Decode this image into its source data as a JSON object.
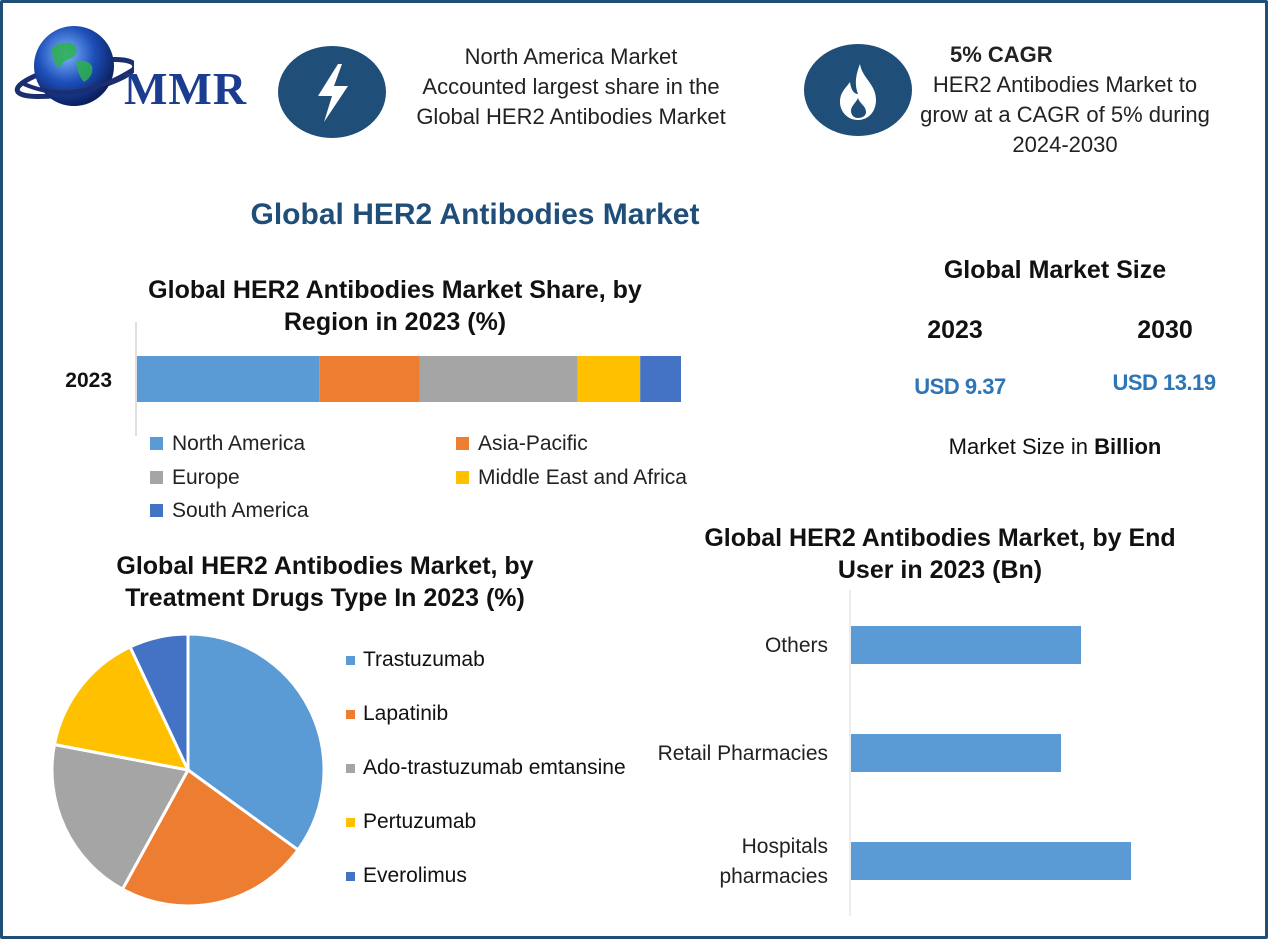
{
  "header": {
    "logo_text": "MMR",
    "region_info": [
      "North America Market",
      "Accounted largest share in the",
      "Global HER2 Antibodies Market"
    ],
    "cagr_title": "5% CAGR",
    "cagr_info": [
      "HER2 Antibodies Market to",
      "grow at a CAGR of 5% during",
      "2024-2030"
    ]
  },
  "main_title": "Global HER2 Antibodies Market",
  "market_size": {
    "heading": "Global Market Size",
    "years": [
      "2023",
      "2030"
    ],
    "values": [
      "USD 9.37",
      "USD 13.19"
    ],
    "note_prefix": "Market Size in ",
    "note_bold": "Billion"
  },
  "colors": {
    "accent": "#1f4e79",
    "north_america": "#5b9bd5",
    "asia_pacific": "#ed7d31",
    "europe": "#a5a5a5",
    "mea": "#ffc000",
    "south_america": "#4472c4"
  },
  "icons": [
    "globe-icon",
    "lightning-icon",
    "flame-icon"
  ],
  "chart_data": [
    {
      "type": "bar",
      "orientation": "horizontal-stacked",
      "title": "Global HER2 Antibodies Market Share, by Region in 2023 (%)",
      "title_lines": [
        "Global HER2 Antibodies Market Share, by",
        "Region in 2023 (%)"
      ],
      "categories": [
        "2023"
      ],
      "series": [
        {
          "name": "North America",
          "values": [
            33.5
          ],
          "color": "#5b9bd5"
        },
        {
          "name": "Asia-Pacific",
          "values": [
            18.5
          ],
          "color": "#ed7d31"
        },
        {
          "name": "Europe",
          "values": [
            29
          ],
          "color": "#a5a5a5"
        },
        {
          "name": "Middle East and Africa",
          "values": [
            11.5
          ],
          "color": "#ffc000"
        },
        {
          "name": "South America",
          "values": [
            7.5
          ],
          "color": "#4472c4"
        }
      ],
      "legend_placement": "bottom",
      "grid": false
    },
    {
      "type": "pie",
      "title": "Global HER2 Antibodies Market, by Treatment Drugs Type In 2023 (%)",
      "title_lines": [
        "Global HER2 Antibodies Market, by",
        "Treatment Drugs Type In 2023 (%)"
      ],
      "labels": [
        "Trastuzumab",
        "Lapatinib",
        "Ado-trastuzumab emtansine",
        "Pertuzumab",
        "Everolimus"
      ],
      "values": [
        35,
        23,
        20,
        15,
        7
      ],
      "colors": [
        "#5b9bd5",
        "#ed7d31",
        "#a5a5a5",
        "#ffc000",
        "#4472c4"
      ],
      "legend_placement": "right"
    },
    {
      "type": "bar",
      "orientation": "horizontal",
      "title": "Global HER2 Antibodies Market, by End User in 2023 (Bn)",
      "title_lines": [
        "Global HER2 Antibodies Market, by End",
        "User in 2023 (Bn)"
      ],
      "categories": [
        "Others",
        "Retail Pharmacies",
        "Hospitals pharmacies"
      ],
      "category_lines": [
        [
          "Others"
        ],
        [
          "Retail Pharmacies"
        ],
        [
          "Hospitals",
          "pharmacies"
        ]
      ],
      "values": [
        2.3,
        2.1,
        2.8
      ],
      "xlim": [
        0,
        4
      ],
      "color": "#5b9bd5",
      "grid": false
    }
  ]
}
